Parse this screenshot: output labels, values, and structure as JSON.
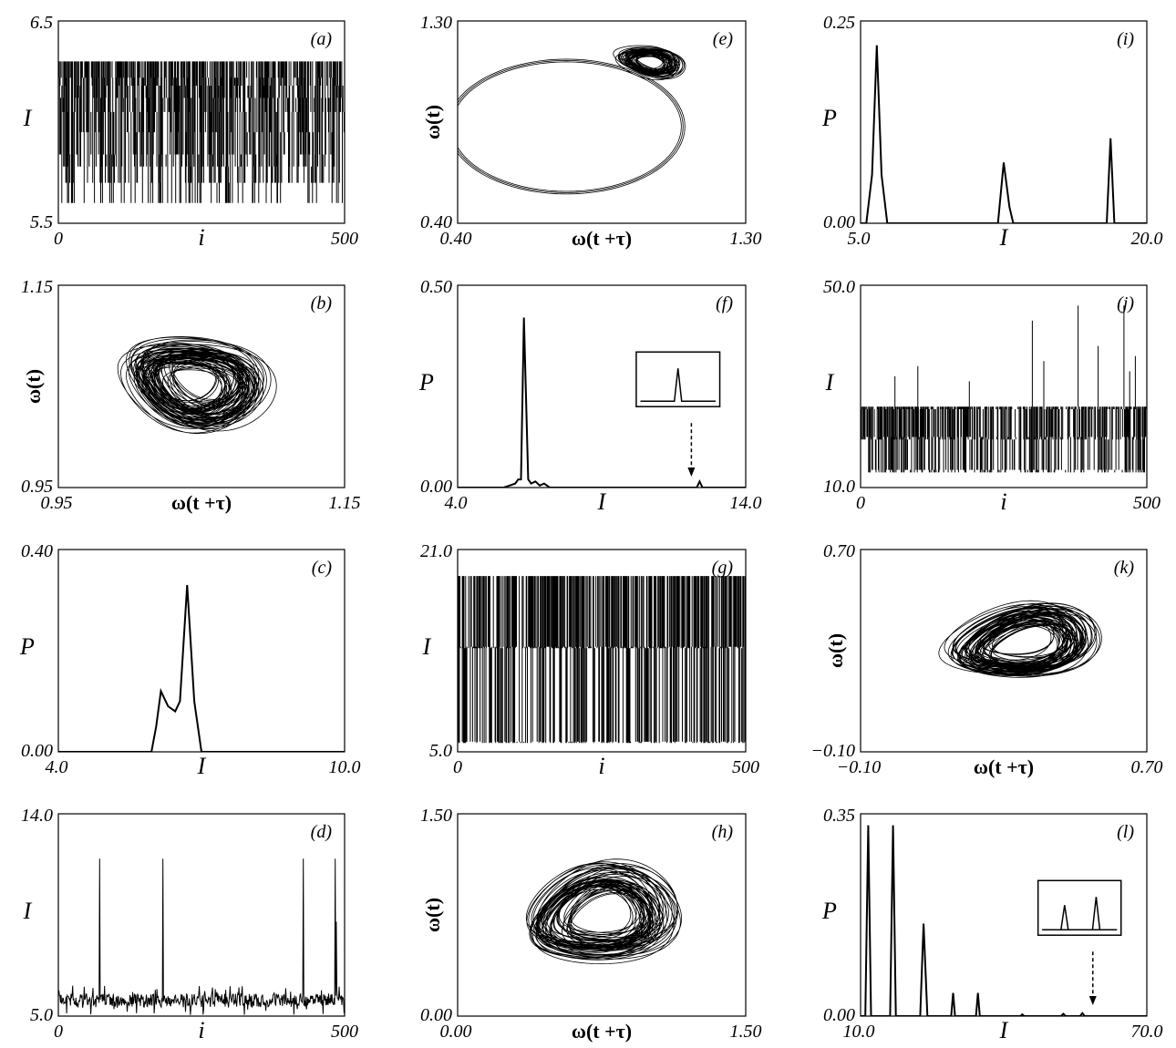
{
  "chart_data": [
    {
      "id": "a",
      "type": "line",
      "kind": "series",
      "label": "(a)",
      "xlabel": "i",
      "ylabel": "I",
      "xlim": [
        0,
        500
      ],
      "ylim": [
        5.5,
        6.5
      ],
      "xtick_labels": [
        "0",
        "500"
      ],
      "ytick_labels": [
        "5.5",
        "6.5"
      ],
      "levels": [
        5.6,
        5.7,
        5.78,
        5.84,
        5.95,
        6.05,
        6.12,
        6.18,
        6.22,
        6.3
      ],
      "max": 6.3,
      "n": 500,
      "seed": 11,
      "style": "spiky-dense"
    },
    {
      "id": "b",
      "type": "line",
      "kind": "phase",
      "label": "(b)",
      "xlabel": "ω(t +τ)",
      "ylabel": "ω(t)",
      "xlim": [
        0.95,
        1.15
      ],
      "ylim": [
        0.95,
        1.15
      ],
      "xtick_labels": [
        "0.95",
        "1.15"
      ],
      "ytick_labels": [
        "0.95",
        "1.15"
      ],
      "center": [
        1.045,
        1.055
      ],
      "radius": [
        0.05,
        0.04
      ],
      "spread": 0.55,
      "tilt": -0.55,
      "loops": 70,
      "seed": 22
    },
    {
      "id": "c",
      "type": "line",
      "kind": "dist",
      "label": "(c)",
      "xlabel": "I",
      "ylabel": "P",
      "xlim": [
        4.0,
        10.0
      ],
      "ylim": [
        0,
        0.4
      ],
      "xtick_labels": [
        "4.0",
        "10.0"
      ],
      "ytick_labels": [
        "0.00",
        "0.40"
      ],
      "x": [
        4.0,
        5.95,
        6.05,
        6.15,
        6.3,
        6.45,
        6.55,
        6.7,
        6.85,
        7.0,
        10.0
      ],
      "y": [
        0,
        0,
        0.05,
        0.12,
        0.09,
        0.08,
        0.1,
        0.33,
        0.1,
        0,
        0
      ]
    },
    {
      "id": "d",
      "type": "line",
      "kind": "series",
      "label": "(d)",
      "xlabel": "i",
      "ylabel": "I",
      "xlim": [
        0,
        500
      ],
      "ylim": [
        5.0,
        14.0
      ],
      "xtick_labels": [
        "0",
        "500"
      ],
      "ytick_labels": [
        "5.0",
        "14.0"
      ],
      "base": 5.7,
      "noise": 0.6,
      "spikes": [
        [
          75,
          12.0
        ],
        [
          190,
          12.0
        ],
        [
          445,
          12.0
        ],
        [
          503,
          12.0
        ],
        [
          505,
          9.2
        ]
      ],
      "n": 520,
      "seed": 33,
      "style": "noise-spikes"
    },
    {
      "id": "e",
      "type": "line",
      "kind": "phase",
      "label": "(e)",
      "xlabel": "ω(t +τ)",
      "ylabel": "ω(t)",
      "xlim": [
        0.4,
        1.3
      ],
      "ylim": [
        0.4,
        1.3
      ],
      "xtick_labels": [
        "0.40",
        "1.30"
      ],
      "ytick_labels": [
        "0.40",
        "1.30"
      ],
      "center": [
        1.0,
        1.12
      ],
      "radius": [
        0.1,
        0.06
      ],
      "spread": 0.5,
      "tilt": -0.3,
      "loops": 40,
      "seed": 44,
      "big_loop": {
        "cx": 0.74,
        "cy": 0.83,
        "rx": 0.37,
        "ry": 0.3
      }
    },
    {
      "id": "f",
      "type": "line",
      "kind": "dist",
      "label": "(f)",
      "xlabel": "I",
      "ylabel": "P",
      "xlim": [
        4.0,
        14.0
      ],
      "ylim": [
        0,
        0.5
      ],
      "xtick_labels": [
        "4.0",
        "14.0"
      ],
      "ytick_labels": [
        "0.00",
        "0.50"
      ],
      "x": [
        4.0,
        5.6,
        5.8,
        6.0,
        6.1,
        6.2,
        6.3,
        6.45,
        6.55,
        6.7,
        6.85,
        7.0,
        7.2,
        12.2,
        12.3,
        12.4,
        12.5,
        14.0
      ],
      "y": [
        0,
        0,
        0.005,
        0.01,
        0.02,
        0.02,
        0.42,
        0.02,
        0.01,
        0.015,
        0.005,
        0.01,
        0,
        0,
        0,
        0.015,
        0,
        0
      ],
      "inset": {
        "arrow": true
      }
    },
    {
      "id": "g",
      "type": "line",
      "kind": "series",
      "label": "(g)",
      "xlabel": "i",
      "ylabel": "I",
      "xlim": [
        0,
        500
      ],
      "ylim": [
        5.0,
        21.0
      ],
      "xtick_labels": [
        "0",
        "500"
      ],
      "ytick_labels": [
        "5.0",
        "21.0"
      ],
      "levels": [
        5.7,
        5.8,
        13.2,
        13.3,
        18.9
      ],
      "max": 18.9,
      "n": 500,
      "seed": 55,
      "style": "spiky-dense"
    },
    {
      "id": "h",
      "type": "line",
      "kind": "phase",
      "label": "(h)",
      "xlabel": "ω(t +τ)",
      "ylabel": "ω(t)",
      "xlim": [
        0.0,
        1.5
      ],
      "ylim": [
        0.0,
        1.5
      ],
      "xtick_labels": [
        "0.00",
        "1.50"
      ],
      "ytick_labels": [
        "0.00",
        "1.50"
      ],
      "center": [
        0.75,
        0.75
      ],
      "radius": [
        0.38,
        0.32
      ],
      "spread": 0.45,
      "tilt": 0.45,
      "loops": 55,
      "seed": 66
    },
    {
      "id": "i",
      "type": "line",
      "kind": "dist",
      "label": "(i)",
      "xlabel": "I",
      "ylabel": "P",
      "xlim": [
        5.0,
        20.0
      ],
      "ylim": [
        0,
        0.25
      ],
      "xtick_labels": [
        "5.0",
        "20.0"
      ],
      "ytick_labels": [
        "0.00",
        "0.25"
      ],
      "x": [
        5.0,
        5.3,
        5.6,
        5.85,
        6.1,
        6.4,
        6.8,
        12.0,
        12.2,
        12.5,
        12.8,
        13.0,
        17.9,
        18.1,
        18.3,
        20.0
      ],
      "y": [
        0,
        0,
        0.06,
        0.22,
        0.06,
        0,
        0,
        0,
        0,
        0.075,
        0.02,
        0,
        0,
        0.105,
        0,
        0
      ]
    },
    {
      "id": "j",
      "type": "line",
      "kind": "series",
      "label": "(j)",
      "xlabel": "i",
      "ylabel": "I",
      "xlim": [
        0,
        500
      ],
      "ylim": [
        10.0,
        50.0
      ],
      "xtick_labels": [
        "0",
        "500"
      ],
      "ytick_labels": [
        "10.0",
        "50.0"
      ],
      "levels": [
        13.0,
        13.5,
        19.5,
        20.0,
        25.5,
        26.0
      ],
      "max": 26.0,
      "spikes": [
        [
          60,
          32
        ],
        [
          100,
          34
        ],
        [
          190,
          31
        ],
        [
          300,
          43
        ],
        [
          320,
          35
        ],
        [
          380,
          46
        ],
        [
          415,
          38
        ],
        [
          460,
          46
        ],
        [
          470,
          33
        ],
        [
          480,
          36
        ]
      ],
      "n": 500,
      "seed": 77,
      "style": "spiky-dense"
    },
    {
      "id": "k",
      "type": "line",
      "kind": "phase",
      "label": "(k)",
      "xlabel": "ω(t +τ)",
      "ylabel": "ω(t)",
      "xlim": [
        -0.1,
        0.7
      ],
      "ylim": [
        -0.1,
        0.7
      ],
      "xtick_labels": [
        "−0.10",
        "0.70"
      ],
      "ytick_labels": [
        "−0.10",
        "0.70"
      ],
      "center": [
        0.35,
        0.33
      ],
      "radius": [
        0.2,
        0.13
      ],
      "spread": 0.5,
      "tilt": 0.3,
      "loops": 60,
      "seed": 88
    },
    {
      "id": "l",
      "type": "line",
      "kind": "dist",
      "label": "(l)",
      "xlabel": "I",
      "ylabel": "P",
      "xlim": [
        10.0,
        70.0
      ],
      "ylim": [
        0,
        0.35
      ],
      "xtick_labels": [
        "10.0",
        "70.0"
      ],
      "ytick_labels": [
        "0.00",
        "0.35"
      ],
      "x": [
        10.0,
        11.0,
        11.6,
        12.2,
        16.2,
        16.8,
        17.4,
        22.5,
        23.2,
        24.0,
        29.0,
        29.4,
        29.8,
        34.2,
        34.6,
        35.0,
        43.5,
        43.9,
        44.3,
        52.0,
        52.5,
        53.0,
        56.0,
        56.5,
        57.0,
        70.0
      ],
      "y": [
        0,
        0,
        0.33,
        0,
        0,
        0.33,
        0,
        0,
        0.16,
        0,
        0,
        0.04,
        0,
        0,
        0.04,
        0,
        0,
        0.003,
        0,
        0,
        0.004,
        0,
        0,
        0.005,
        0,
        0
      ],
      "inset": {
        "arrow": true,
        "double": true
      }
    }
  ]
}
